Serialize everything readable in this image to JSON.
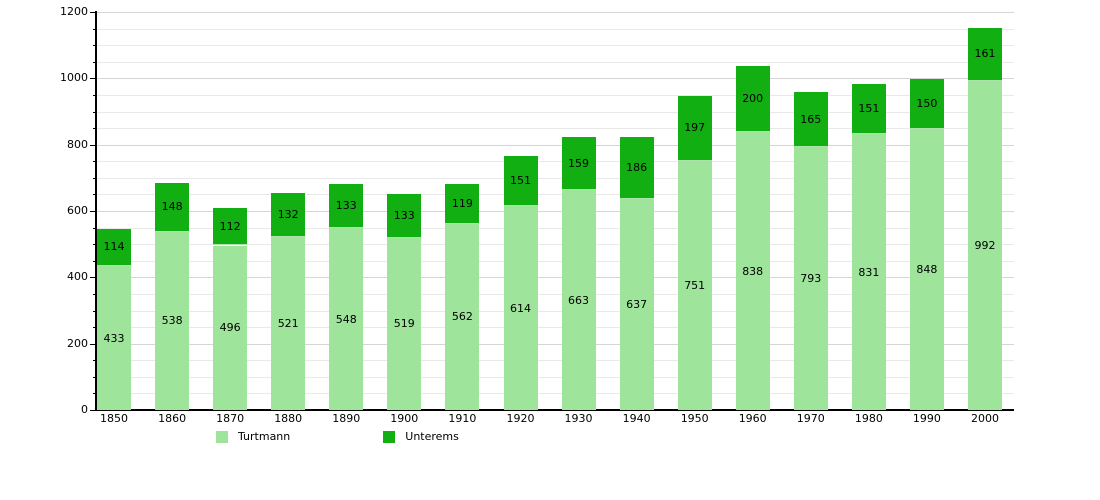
{
  "chart_data": {
    "type": "bar",
    "stacked": true,
    "title": "",
    "xlabel": "",
    "ylabel": "",
    "categories": [
      "1850",
      "1860",
      "1870",
      "1880",
      "1890",
      "1900",
      "1910",
      "1920",
      "1930",
      "1940",
      "1950",
      "1960",
      "1970",
      "1980",
      "1990",
      "2000"
    ],
    "series": [
      {
        "name": "Turtmann",
        "color": "#9ee49a",
        "values": [
          433,
          538,
          496,
          521,
          548,
          519,
          562,
          614,
          663,
          637,
          751,
          838,
          793,
          831,
          848,
          992
        ]
      },
      {
        "name": "Unterems",
        "color": "#11af11",
        "values": [
          114,
          148,
          112,
          132,
          133,
          133,
          119,
          151,
          159,
          186,
          197,
          200,
          165,
          151,
          150,
          161
        ]
      }
    ],
    "ylim": [
      0,
      1200
    ],
    "y_major_ticks": [
      0,
      200,
      400,
      600,
      800,
      1000,
      1200
    ],
    "y_minor_step": 50,
    "grid": true,
    "value_labels": true,
    "legend_position": "bottom",
    "axis_color": "#000000",
    "gridline_color": "#e9e9e9"
  }
}
